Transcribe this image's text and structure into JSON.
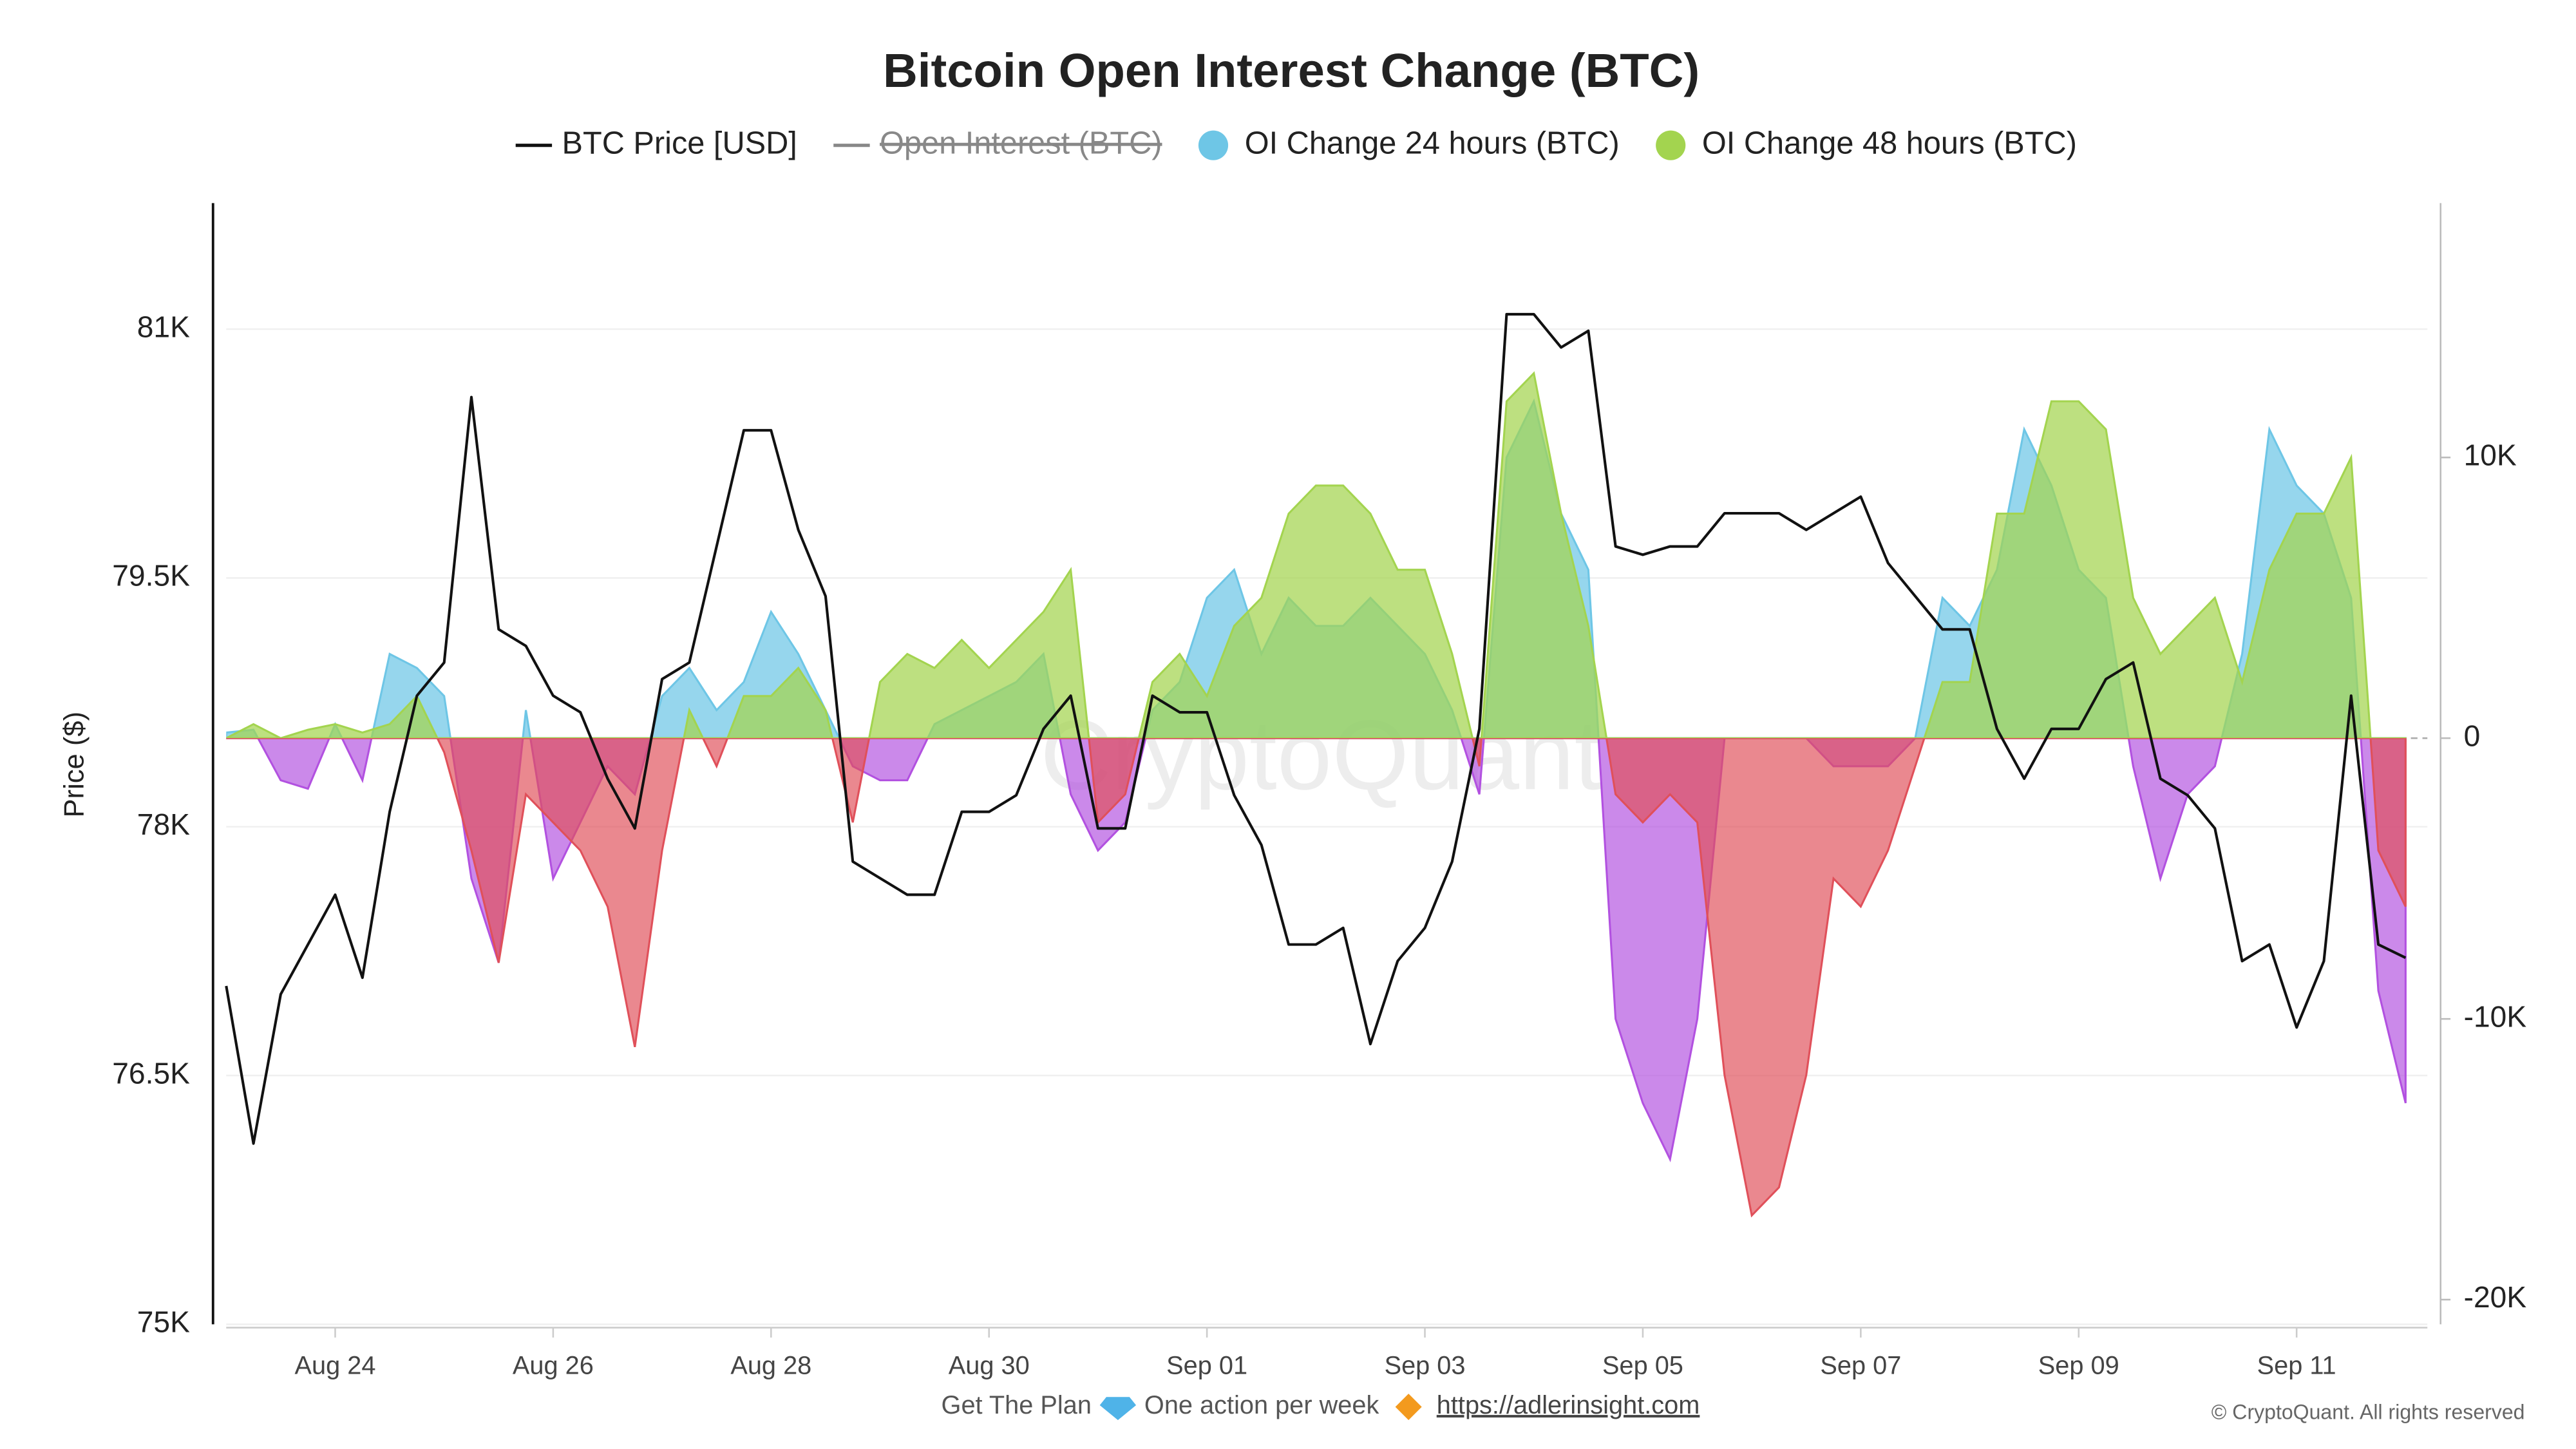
{
  "chart_data": {
    "type": "line",
    "title": "Bitcoin Open Interest Change (BTC)",
    "y_label": "Price ($)",
    "watermark": "CryptoQuant",
    "footer": {
      "cta": "Get The Plan",
      "tagline": "One action per week",
      "link": "https://adlerinsight.com",
      "copyright": "© CryptoQuant. All rights reserved"
    },
    "hidden_legend_entries": [
      {
        "name": "Open Interest (BTC)",
        "color": "#888888"
      }
    ],
    "x": [
      23,
      23.25,
      23.5,
      23.75,
      24,
      24.25,
      24.5,
      24.75,
      25,
      25.25,
      25.5,
      25.75,
      26,
      26.25,
      26.5,
      26.75,
      27,
      27.25,
      27.5,
      27.75,
      28,
      28.25,
      28.5,
      28.75,
      29,
      29.25,
      29.5,
      29.75,
      30,
      30.25,
      30.5,
      30.75,
      31,
      31.25,
      31.5,
      31.75,
      32,
      32.25,
      32.5,
      32.75,
      33,
      33.25,
      33.5,
      33.75,
      34,
      34.25,
      34.5,
      34.75,
      35,
      35.25,
      35.5,
      35.75,
      36,
      36.25,
      36.5,
      36.75,
      37,
      37.25,
      37.5,
      37.75,
      38,
      38.25,
      38.5,
      38.75,
      39,
      39.25,
      39.5,
      39.75,
      40,
      40.25,
      40.5,
      40.75,
      41,
      41.25,
      41.5,
      41.75,
      42,
      42.25,
      42.5,
      42.75,
      43
    ],
    "xlim": [
      23,
      43.2
    ],
    "xticks": [
      {
        "value": 24,
        "label": "Aug 24"
      },
      {
        "value": 26,
        "label": "Aug 26"
      },
      {
        "value": 28,
        "label": "Aug 28"
      },
      {
        "value": 30,
        "label": "Aug 30"
      },
      {
        "value": 32,
        "label": "Sep 01"
      },
      {
        "value": 34,
        "label": "Sep 03"
      },
      {
        "value": 36,
        "label": "Sep 05"
      },
      {
        "value": 38,
        "label": "Sep 07"
      },
      {
        "value": 40,
        "label": "Sep 09"
      },
      {
        "value": 42,
        "label": "Sep 11"
      }
    ],
    "ylim": [
      75000,
      81760
    ],
    "yticks": [
      {
        "value": 75000,
        "label": "75K"
      },
      {
        "value": 76500,
        "label": "76.5K"
      },
      {
        "value": 78000,
        "label": "78K"
      },
      {
        "value": 79500,
        "label": "79.5K"
      },
      {
        "value": 81000,
        "label": "81K"
      }
    ],
    "y2lim": [
      -20880,
      19060
    ],
    "y2ticks": [
      {
        "value": -20000,
        "label": "-20K"
      },
      {
        "value": -10000,
        "label": "-10K"
      },
      0,
      {
        "value": 10000,
        "label": "10K"
      }
    ],
    "grid": true,
    "series": [
      {
        "name": "BTC Price [USD]",
        "type": "line",
        "color": "#111111",
        "values": [
          77040,
          76090,
          76990,
          77290,
          77590,
          77090,
          78090,
          78790,
          78990,
          80590,
          79190,
          79090,
          78790,
          78690,
          78290,
          77990,
          78890,
          78990,
          79690,
          80390,
          80390,
          79790,
          79390,
          77790,
          77690,
          77590,
          77590,
          78090,
          78090,
          78190,
          78590,
          78790,
          77990,
          77990,
          78790,
          78690,
          78690,
          78190,
          77890,
          77290,
          77290,
          77390,
          76690,
          77190,
          77390,
          77790,
          78590,
          81090,
          81090,
          80890,
          80990,
          79690,
          79640,
          79690,
          79690,
          79890,
          79890,
          79890,
          79790,
          79890,
          79990,
          79590,
          79390,
          79190,
          79190,
          78590,
          78290,
          78590,
          78590,
          78890,
          78990,
          78290,
          78190,
          77990,
          77190,
          77290,
          76790,
          77190,
          78790,
          77290,
          77210
        ]
      },
      {
        "name": "OI Change 24 hours (BTC)",
        "type": "area",
        "axis": "y2",
        "color": "#6ec6e6",
        "negative_color": "#b251e0",
        "values": [
          200,
          300,
          -1500,
          -1800,
          500,
          -1500,
          3000,
          2500,
          1500,
          -5000,
          -8000,
          1000,
          -5000,
          -3000,
          -1000,
          -2000,
          1500,
          2500,
          1000,
          2000,
          4500,
          3000,
          1000,
          -1000,
          -1500,
          -1500,
          500,
          1000,
          1500,
          2000,
          3000,
          -2000,
          -4000,
          -3000,
          1000,
          2000,
          5000,
          6000,
          3000,
          5000,
          4000,
          4000,
          5000,
          4000,
          3000,
          1000,
          -2000,
          10000,
          12000,
          8000,
          6000,
          -10000,
          -13000,
          -15000,
          -10000,
          0,
          0,
          0,
          0,
          -1000,
          -1000,
          -1000,
          0,
          5000,
          4000,
          6000,
          11000,
          9000,
          6000,
          5000,
          -1000,
          -5000,
          -2000,
          -1000,
          3000,
          11000,
          9000,
          8000,
          5000,
          -9000,
          -13000
        ]
      },
      {
        "name": "OI Change 48 hours (BTC)",
        "type": "area",
        "axis": "y2",
        "color": "#a3d44f",
        "negative_color": "#e0505a",
        "values": [
          0,
          500,
          0,
          300,
          500,
          200,
          500,
          1500,
          -500,
          -4000,
          -8000,
          -2000,
          -3000,
          -4000,
          -6000,
          -11000,
          -4000,
          1000,
          -1000,
          1500,
          1500,
          2500,
          1000,
          -3000,
          2000,
          3000,
          2500,
          3500,
          2500,
          3500,
          4500,
          6000,
          -3000,
          -2000,
          2000,
          3000,
          1500,
          4000,
          5000,
          8000,
          9000,
          9000,
          8000,
          6000,
          6000,
          3000,
          -1000,
          12000,
          13000,
          8000,
          4000,
          -2000,
          -3000,
          -2000,
          -3000,
          -12000,
          -17000,
          -16000,
          -12000,
          -5000,
          -6000,
          -4000,
          -1000,
          2000,
          2000,
          8000,
          8000,
          12000,
          12000,
          11000,
          5000,
          3000,
          4000,
          5000,
          2000,
          6000,
          8000,
          8000,
          10000,
          -4000,
          -6000
        ]
      }
    ]
  }
}
